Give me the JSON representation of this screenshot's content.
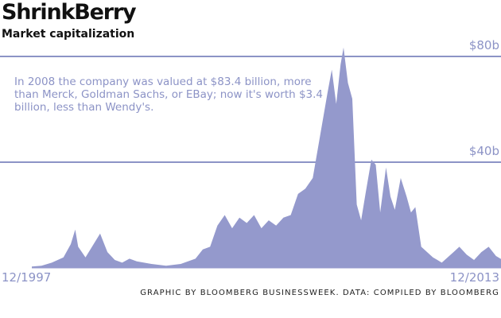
{
  "header": {
    "title": "ShrinkBerry",
    "subtitle": "Market capitalization"
  },
  "annotation": "In 2008 the company was valued at $83.4 billion, more than Merck, Goldman Sachs, or EBay; now it's worth $3.4 billion, less than Wendy's.",
  "credit": "GRAPHIC BY BLOOMBERG BUSINESSWEEK. DATA: COMPILED BY BLOOMBERG",
  "colors": {
    "fill": "#9499cc",
    "gridline": "#8c93c6",
    "text_accent": "#8c93c6"
  },
  "chart_data": {
    "type": "area",
    "x_tick_labels": [
      "12/1997",
      "12/2013"
    ],
    "y_tick_labels": [
      "$80b",
      "$40b"
    ],
    "y_ticks": [
      80,
      40
    ],
    "ylim": [
      0,
      85
    ],
    "xlim": [
      1997.92,
      2013.92
    ],
    "grid": true,
    "series": [
      {
        "x": [
          1997.92,
          1998.25,
          1998.6,
          1999.0,
          1999.25,
          1999.4,
          1999.5,
          1999.75,
          2000.0,
          2000.25,
          2000.5,
          2000.75,
          2001.0,
          2001.25,
          2001.5,
          2002.0,
          2002.5,
          2003.0,
          2003.5,
          2003.75,
          2004.0,
          2004.25,
          2004.5,
          2004.75,
          2005.0,
          2005.25,
          2005.5,
          2005.75,
          2006.0,
          2006.25,
          2006.5,
          2006.75,
          2007.0,
          2007.25,
          2007.5,
          2007.75,
          2008.0,
          2008.15,
          2008.3,
          2008.45,
          2008.55,
          2008.7,
          2008.85,
          2009.0,
          2009.15,
          2009.3,
          2009.5,
          2009.65,
          2009.8,
          2010.0,
          2010.15,
          2010.3,
          2010.5,
          2010.7,
          2010.85,
          2011.0,
          2011.2,
          2011.4,
          2011.6,
          2011.75,
          2011.9,
          2012.1,
          2012.3,
          2012.5,
          2012.75,
          2013.0,
          2013.25,
          2013.5,
          2013.75,
          2013.92
        ],
        "values": [
          0.5,
          0.8,
          2.0,
          4.0,
          9.0,
          14.5,
          8.0,
          4.0,
          8.5,
          13.0,
          6.0,
          3.0,
          2.0,
          3.5,
          2.5,
          1.5,
          0.8,
          1.5,
          3.5,
          7.0,
          8.0,
          16.0,
          20.0,
          15.0,
          19.0,
          17.0,
          20.0,
          15.0,
          18.0,
          16.0,
          19.0,
          20.0,
          28.0,
          30.0,
          34.0,
          50.0,
          66.0,
          75.0,
          62.0,
          77.0,
          83.4,
          70.0,
          64.0,
          24.0,
          18.0,
          28.0,
          41.0,
          39.0,
          21.0,
          38.0,
          27.0,
          22.0,
          34.0,
          27.0,
          21.0,
          23.0,
          8.0,
          6.0,
          4.0,
          3.0,
          2.0,
          4.0,
          6.0,
          8.0,
          5.0,
          3.0,
          6.0,
          8.0,
          4.5,
          3.4
        ]
      }
    ]
  }
}
